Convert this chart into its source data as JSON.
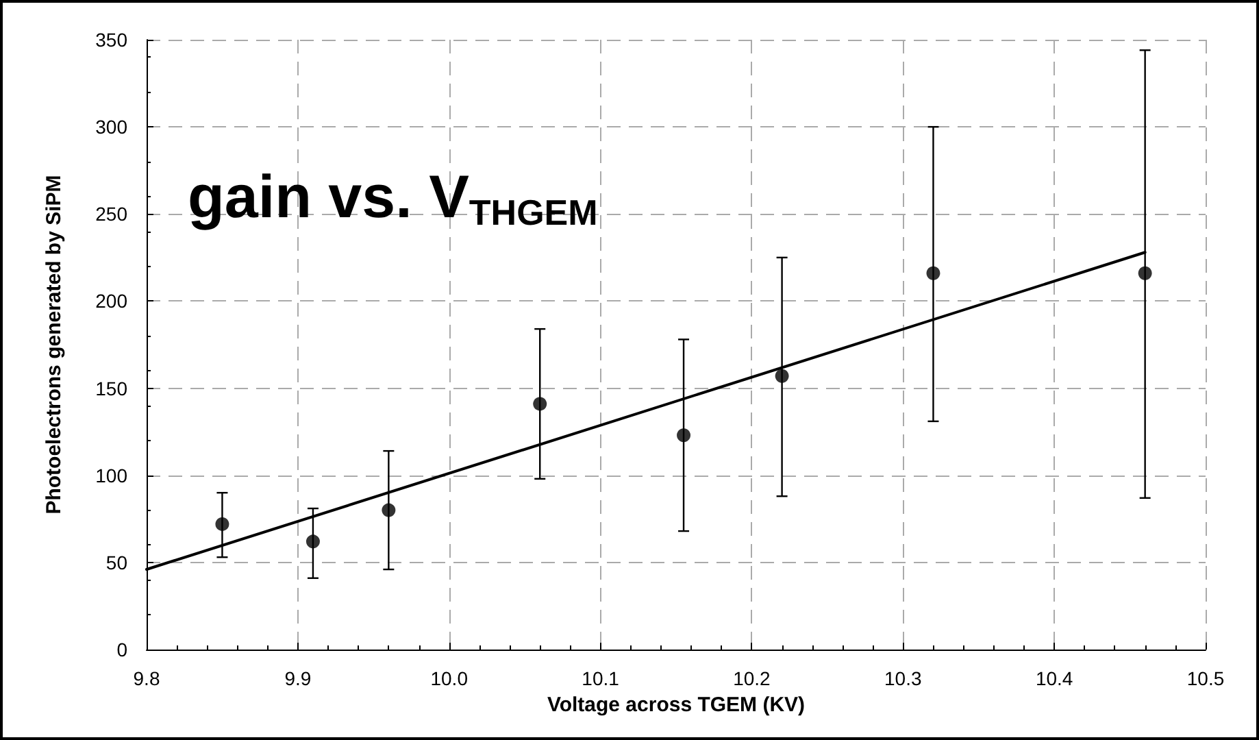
{
  "chart_data": {
    "type": "scatter",
    "xlabel": "Voltage across TGEM (KV)",
    "ylabel": "Photoelectrons generated by SiPM",
    "annotations": [
      "gain vs. V$_{THGEM}$"
    ],
    "xlim": [
      9.8,
      10.5
    ],
    "xticks": [
      {
        "value": 9.8,
        "label": "9.8"
      },
      {
        "value": 9.9,
        "label": "9.9"
      },
      {
        "value": 10.0,
        "label": "10.0"
      },
      {
        "value": 10.1,
        "label": "10.1"
      },
      {
        "value": 10.2,
        "label": "10.2"
      },
      {
        "value": 10.3,
        "label": "10.3"
      },
      {
        "value": 10.4,
        "label": "10.4"
      },
      {
        "value": 10.5,
        "label": "10.5"
      }
    ],
    "ylim": [
      0,
      350
    ],
    "yticks": [
      0,
      50,
      100,
      150,
      200,
      250,
      300,
      350
    ],
    "grid": true,
    "marker": "circle",
    "series": [
      {
        "color": "#000000",
        "x": [
          9.85,
          9.91,
          9.96,
          10.06,
          10.155,
          10.22,
          10.32,
          10.46
        ],
        "values": [
          72,
          62,
          80,
          141,
          123,
          157,
          216,
          216
        ],
        "errors": [
          [
            53,
            90
          ],
          [
            41,
            81
          ],
          [
            46,
            114
          ],
          [
            98,
            184
          ],
          [
            68,
            178
          ],
          [
            88,
            225
          ],
          [
            131,
            300
          ],
          [
            87,
            344
          ]
        ]
      },
      {
        "type": "line",
        "color": "#000000",
        "marker": "none",
        "line_style": "solid",
        "x": [
          9.8,
          10.46
        ],
        "values": [
          46,
          228
        ]
      }
    ]
  }
}
